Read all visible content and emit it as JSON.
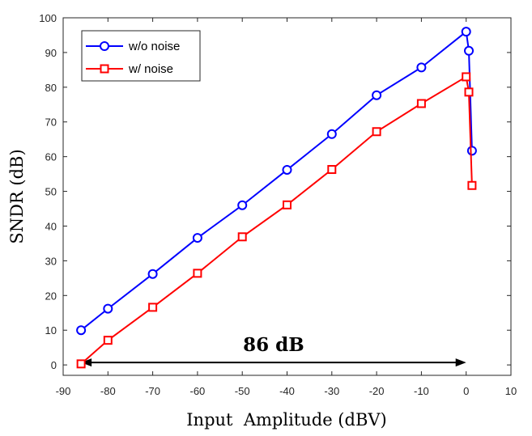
{
  "chart_data": {
    "type": "line",
    "xlabel": "Input  Amplitude (dBV)",
    "ylabel": "SNDR (dB)",
    "xlim": [
      -90,
      10
    ],
    "ylim": [
      -3,
      100
    ],
    "xticks": [
      -90,
      -80,
      -70,
      -60,
      -50,
      -40,
      -30,
      -20,
      -10,
      0,
      10
    ],
    "yticks": [
      0,
      10,
      20,
      30,
      40,
      50,
      60,
      70,
      80,
      90,
      100
    ],
    "grid": false,
    "legend": "top-left",
    "series": [
      {
        "name": "w/o noise",
        "color": "#0000ff",
        "marker": "circle",
        "x": [
          -86,
          -80,
          -70,
          -60,
          -50,
          -40,
          -30,
          -20,
          -10,
          0,
          0.6,
          1.3
        ],
        "y": [
          10,
          16.2,
          26.2,
          36.6,
          46,
          56.2,
          66.5,
          77.7,
          85.7,
          96,
          90.5,
          61.7
        ]
      },
      {
        "name": "w/ noise",
        "color": "#ff0000",
        "marker": "square",
        "x": [
          -86,
          -80,
          -70,
          -60,
          -50,
          -40,
          -30,
          -20,
          -10,
          0,
          0.6,
          1.3
        ],
        "y": [
          0.3,
          7.1,
          16.6,
          26.4,
          36.9,
          46.1,
          56.3,
          67.2,
          75.3,
          83,
          78.6,
          51.7
        ]
      }
    ],
    "annotation": {
      "text": "86 dB",
      "x_start": -86,
      "x_end": 0,
      "y": 0.7
    }
  }
}
